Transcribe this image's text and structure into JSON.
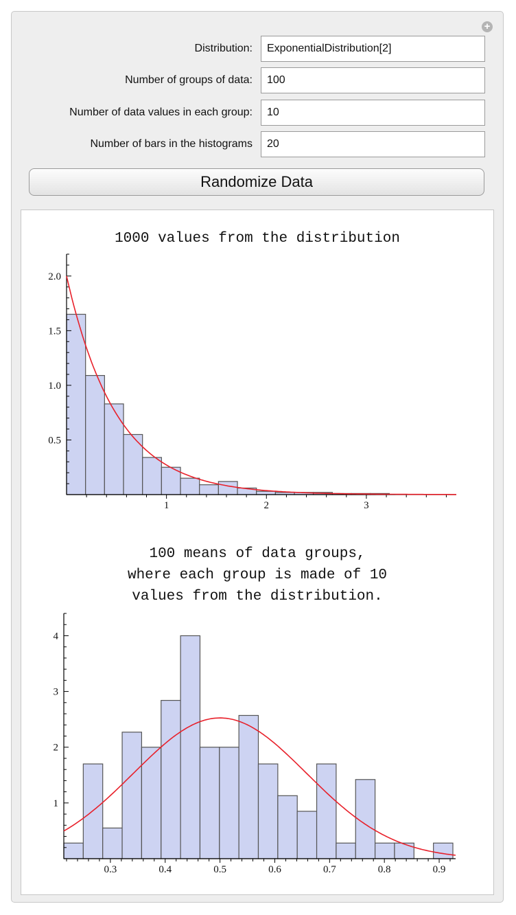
{
  "controls": [
    {
      "label": "Distribution:",
      "value": "ExponentialDistribution[2]"
    },
    {
      "label": "Number of groups of data:",
      "value": "100"
    },
    {
      "label": "Number of data values in each group:",
      "value": "10"
    },
    {
      "label": "Number of bars in the histograms",
      "value": "20"
    }
  ],
  "randomize_label": "Randomize Data",
  "colors": {
    "bar_fill": "#cdd3f2",
    "bar_stroke": "#555555",
    "curve": "#e8202a"
  },
  "chart_data": [
    {
      "type": "bar",
      "title": "1000 values from the distribution",
      "bin_start": 0,
      "bin_width": 0.19,
      "values": [
        1.65,
        1.09,
        0.83,
        0.55,
        0.34,
        0.25,
        0.15,
        0.09,
        0.12,
        0.06,
        0.03,
        0.02,
        0.02,
        0.02,
        0.01,
        0.01,
        0.01
      ],
      "xlim": [
        0,
        3.9
      ],
      "ylim": [
        0,
        2.2
      ],
      "xticks": [
        1,
        2,
        3
      ],
      "xticklabels": [
        "1",
        "2",
        "3"
      ],
      "yticks": [
        0.5,
        1.0,
        1.5,
        2.0
      ],
      "yticklabels": [
        "0.5",
        "1.0",
        "1.5",
        "2.0"
      ],
      "curve": {
        "name": "pdf",
        "type": "exponential",
        "rate": 2
      }
    },
    {
      "type": "bar",
      "title_lines": [
        "100 means of data groups,",
        "where each group is made of 10",
        "values from the distribution."
      ],
      "bin_start": 0.215,
      "bin_width": 0.0355,
      "values": [
        0.28,
        1.7,
        0.55,
        2.27,
        2.0,
        2.84,
        4.0,
        2.0,
        2.0,
        2.57,
        1.7,
        1.13,
        0.85,
        1.7,
        0.28,
        1.42,
        0.28,
        0.28,
        0,
        0.28
      ],
      "xlim": [
        0.215,
        0.93
      ],
      "ylim": [
        0,
        4.4
      ],
      "xticks": [
        0.3,
        0.4,
        0.5,
        0.6,
        0.7,
        0.8,
        0.9
      ],
      "xticklabels": [
        "0.3",
        "0.4",
        "0.5",
        "0.6",
        "0.7",
        "0.8",
        "0.9"
      ],
      "yticks": [
        1,
        2,
        3,
        4
      ],
      "yticklabels": [
        "1",
        "2",
        "3",
        "4"
      ],
      "curve": {
        "name": "normal",
        "type": "normal",
        "mean": 0.5,
        "sd": 0.158
      }
    }
  ]
}
